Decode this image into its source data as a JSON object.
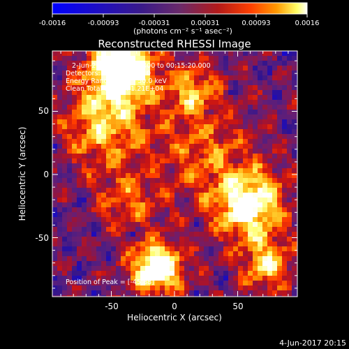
{
  "colorbar": {
    "ticks": [
      "-0.0016",
      "-0.00093",
      "-0.00031",
      "0.00031",
      "0.00093",
      "0.0016"
    ],
    "units": "(photons cm⁻² s⁻¹ asec⁻²)"
  },
  "plot": {
    "title": "Reconstructed RHESSI Image",
    "info_lines": [
      "2-Jun-2017 00:05:20.000 to 00:15:20.000",
      "Detectors: 3F 6F 8F, Att 0",
      "Energy Range: 25.0 - 50.0 keV",
      "Clean   Total counts: 1.21E+04"
    ],
    "peak_text": "Position of Peak = [-45,88]",
    "x_label": "Heliocentric X (arcsec)",
    "y_label": "Heliocentric Y (arcsec)",
    "x_ticks": [
      "-50",
      "0",
      "50"
    ],
    "y_ticks": [
      "50",
      "0",
      "-50"
    ]
  },
  "footer": {
    "timestamp": "4-Jun-2017 20:15"
  },
  "colors": {
    "background": "#000000",
    "colormap": [
      "#0000ff",
      "#3a1a8a",
      "#7a2a6a",
      "#b31a1a",
      "#ff4000",
      "#ff9900",
      "#ffff66",
      "#ffffff"
    ]
  }
}
